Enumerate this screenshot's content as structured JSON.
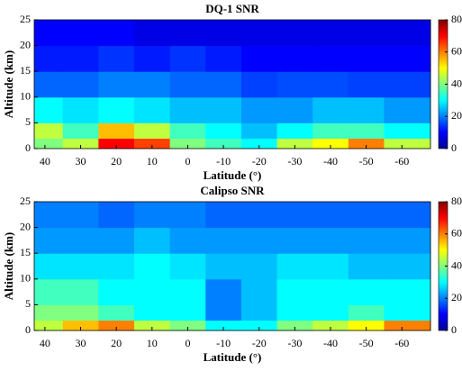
{
  "chart_data": [
    {
      "type": "heatmap",
      "title": "DQ-1 SNR",
      "xlabel": "Latitude (°)",
      "ylabel": "Altitude (km)",
      "colormap": "jet",
      "xlim": [
        43,
        -68
      ],
      "xticks": [
        40,
        30,
        20,
        10,
        0,
        -10,
        -20,
        -30,
        -40,
        -50,
        -60
      ],
      "ylim": [
        0,
        25
      ],
      "yticks": [
        0,
        5,
        10,
        15,
        20,
        25
      ],
      "clim": [
        0,
        80
      ],
      "cticks": [
        0,
        20,
        40,
        60,
        80
      ],
      "xbins": [
        43,
        35,
        25,
        15,
        5,
        -5,
        -15,
        -25,
        -35,
        -45,
        -55,
        -68
      ],
      "ybins": [
        0,
        2,
        5,
        10,
        15,
        20,
        25
      ],
      "z": [
        [
          40,
          45,
          70,
          65,
          40,
          35,
          30,
          45,
          50,
          60,
          45
        ],
        [
          45,
          35,
          55,
          45,
          35,
          30,
          25,
          30,
          35,
          35,
          30
        ],
        [
          30,
          28,
          30,
          28,
          25,
          25,
          22,
          22,
          25,
          25,
          22
        ],
        [
          18,
          18,
          20,
          20,
          18,
          18,
          15,
          16,
          16,
          15,
          15
        ],
        [
          12,
          12,
          14,
          12,
          14,
          12,
          10,
          10,
          10,
          10,
          10
        ],
        [
          10,
          10,
          10,
          8,
          8,
          8,
          8,
          8,
          8,
          8,
          8
        ]
      ]
    },
    {
      "type": "heatmap",
      "title": "Calipso SNR",
      "xlabel": "Latitude (°)",
      "ylabel": "Altitude (km)",
      "colormap": "jet",
      "xlim": [
        43,
        -68
      ],
      "xticks": [
        40,
        30,
        20,
        10,
        0,
        -10,
        -20,
        -30,
        -40,
        -50,
        -60
      ],
      "ylim": [
        0,
        25
      ],
      "yticks": [
        0,
        5,
        10,
        15,
        20,
        25
      ],
      "clim": [
        0,
        80
      ],
      "cticks": [
        0,
        20,
        40,
        60,
        80
      ],
      "xbins": [
        43,
        35,
        25,
        15,
        5,
        -5,
        -15,
        -25,
        -35,
        -45,
        -55,
        -68
      ],
      "ybins": [
        0,
        2,
        5,
        10,
        15,
        20,
        25
      ],
      "z": [
        [
          45,
          55,
          60,
          45,
          40,
          30,
          30,
          40,
          45,
          50,
          60
        ],
        [
          40,
          40,
          35,
          30,
          30,
          20,
          25,
          30,
          30,
          35,
          30
        ],
        [
          35,
          35,
          30,
          30,
          30,
          20,
          25,
          30,
          30,
          30,
          30
        ],
        [
          28,
          28,
          28,
          30,
          28,
          25,
          25,
          28,
          28,
          25,
          25
        ],
        [
          22,
          22,
          22,
          25,
          22,
          22,
          22,
          22,
          22,
          22,
          22
        ],
        [
          20,
          20,
          18,
          20,
          20,
          18,
          18,
          18,
          18,
          18,
          18
        ]
      ]
    }
  ]
}
